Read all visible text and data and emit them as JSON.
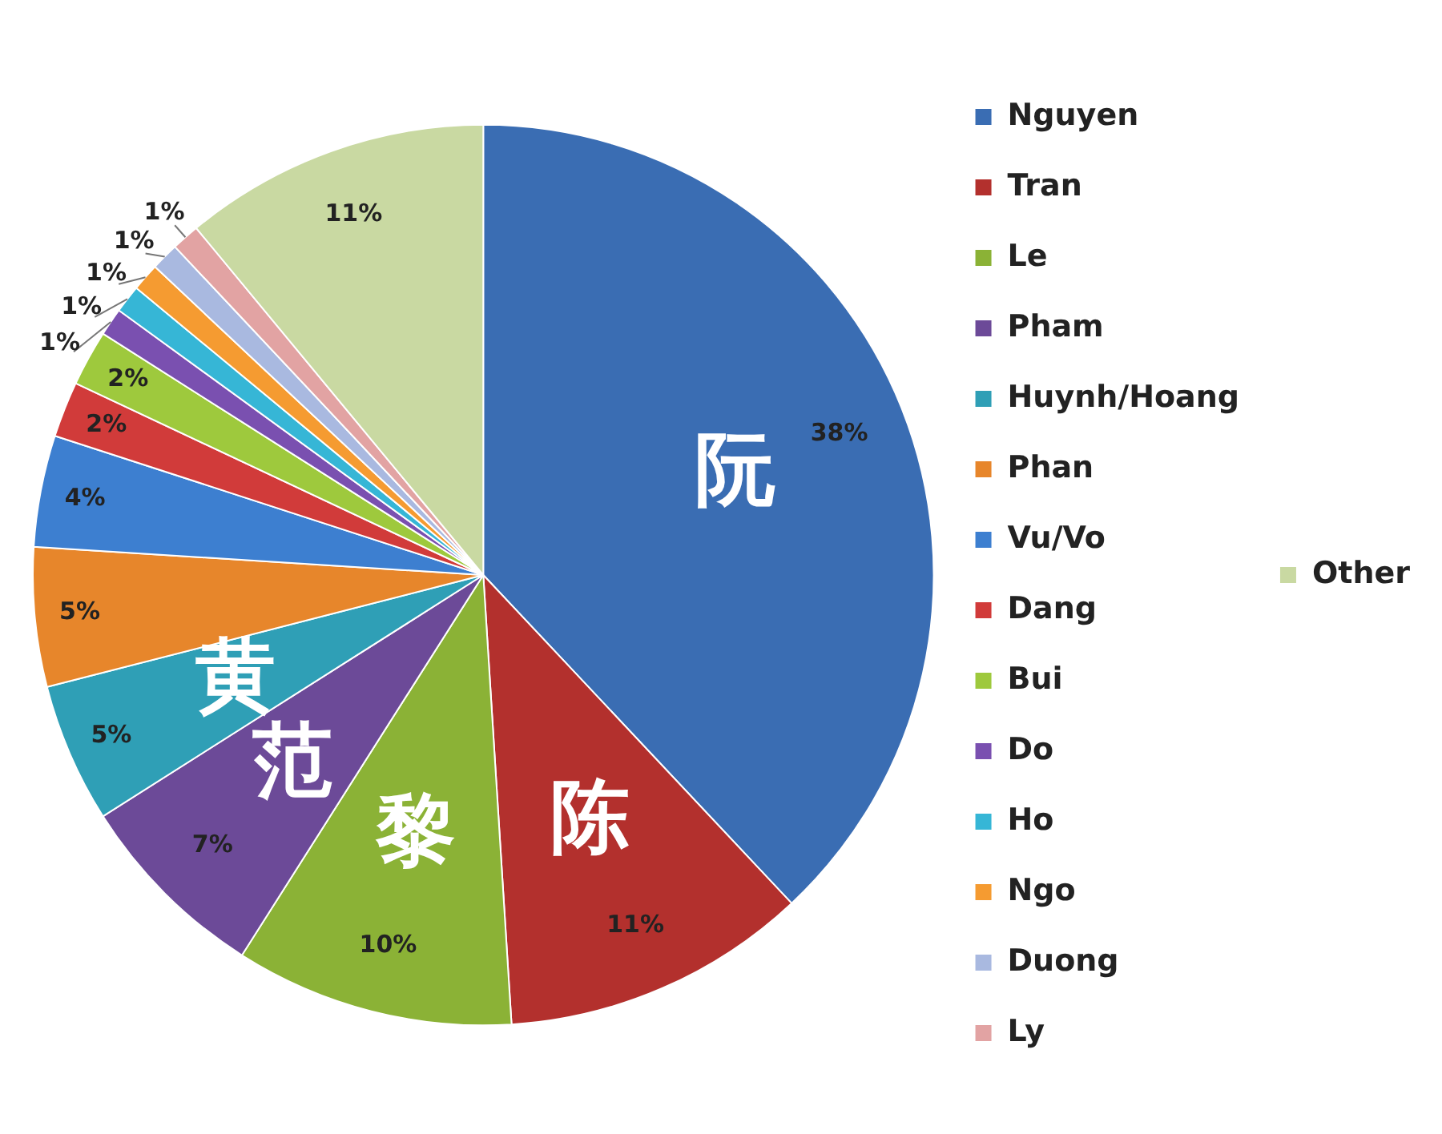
{
  "chart_data": {
    "type": "pie",
    "categories": [
      "Nguyen",
      "Tran",
      "Le",
      "Pham",
      "Huynh/Hoang",
      "Phan",
      "Vu/Vo",
      "Dang",
      "Bui",
      "Do",
      "Ho",
      "Ngo",
      "Duong",
      "Ly",
      "Other"
    ],
    "values": [
      38,
      11,
      10,
      7,
      5,
      5,
      4,
      2,
      2,
      1,
      1,
      1,
      1,
      1,
      11
    ],
    "colors": [
      "#3a6db3",
      "#b3302d",
      "#8bb236",
      "#6c4a98",
      "#2f9fb6",
      "#e7862b",
      "#3d7fd0",
      "#d13b3a",
      "#9ec93d",
      "#7a50b0",
      "#36b6d6",
      "#f59b31",
      "#a9b9e0",
      "#e2a3a3",
      "#c9d9a2"
    ],
    "value_labels": [
      "38%",
      "11%",
      "10%",
      "7%",
      "5%",
      "5%",
      "4%",
      "2%",
      "2%",
      "1%",
      "1%",
      "1%",
      "1%",
      "1%",
      "11%"
    ],
    "legend": "right",
    "annotations": [
      {
        "text": "阮",
        "x": "Nguyen"
      },
      {
        "text": "陈",
        "x": "Tran"
      },
      {
        "text": "黎",
        "x": "Le"
      },
      {
        "text": "范",
        "x": "Pham"
      },
      {
        "text": "黄",
        "x": "Huynh/Hoang"
      }
    ]
  }
}
